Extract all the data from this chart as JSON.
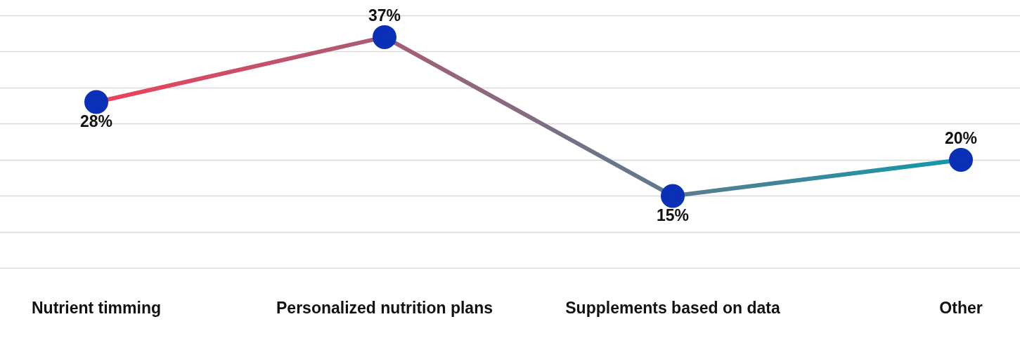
{
  "chart_data": {
    "type": "line",
    "categories": [
      "Nutrient timming",
      "Personalized nutrition plans",
      "Supplements based on data",
      "Other"
    ],
    "series": [
      {
        "color": "#0b30b8",
        "values": [
          28,
          37,
          15,
          20
        ],
        "value_labels": [
          "28%",
          "37%",
          "15%",
          "20%"
        ]
      }
    ],
    "ylim": [
      5,
      40
    ],
    "yticks": [
      {
        "value": 5,
        "label": null
      },
      {
        "value": 10,
        "label": null
      },
      {
        "value": 15,
        "label": null
      },
      {
        "value": 20,
        "label": null
      },
      {
        "value": 25,
        "label": null
      },
      {
        "value": 30,
        "label": null
      },
      {
        "value": 35,
        "label": null
      },
      {
        "value": 40,
        "label": null
      }
    ],
    "grid": "y",
    "tick_labels": "x",
    "marker": "circle",
    "line_style": "solid",
    "legend": false
  }
}
